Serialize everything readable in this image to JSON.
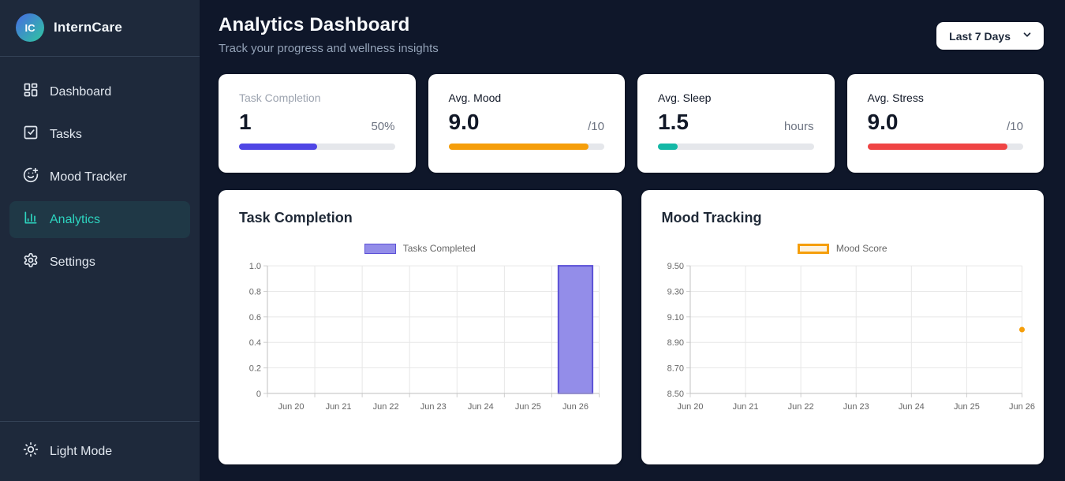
{
  "sidebar": {
    "logo_text": "IC",
    "app_name": "InternCare",
    "items": [
      {
        "label": "Dashboard",
        "icon": "dashboard-icon",
        "active": false
      },
      {
        "label": "Tasks",
        "icon": "tasks-icon",
        "active": false
      },
      {
        "label": "Mood Tracker",
        "icon": "mood-icon",
        "active": false
      },
      {
        "label": "Analytics",
        "icon": "analytics-icon",
        "active": true
      },
      {
        "label": "Settings",
        "icon": "settings-icon",
        "active": false
      }
    ],
    "footer": {
      "label": "Light Mode",
      "icon": "sun-icon"
    },
    "accent_color": "#2dd4bf"
  },
  "header": {
    "title": "Analytics Dashboard",
    "subtitle": "Track your progress and wellness insights",
    "range_select": {
      "value": "Last 7 Days"
    }
  },
  "stats": [
    {
      "label": "Task Completion",
      "value": "1",
      "suffix": "50%",
      "percent": 50,
      "color": "#4f46e5"
    },
    {
      "label": "Avg. Mood",
      "value": "9.0",
      "suffix": "/10",
      "percent": 90,
      "color": "#f59e0b"
    },
    {
      "label": "Avg. Sleep",
      "value": "1.5",
      "suffix": "hours",
      "percent": 12.5,
      "color": "#14b8a6"
    },
    {
      "label": "Avg. Stress",
      "value": "9.0",
      "suffix": "/10",
      "percent": 90,
      "color": "#ef4444"
    }
  ],
  "chart_data": [
    {
      "type": "bar",
      "title": "Task Completion",
      "legend": "Tasks Completed",
      "categories": [
        "Jun 20",
        "Jun 21",
        "Jun 22",
        "Jun 23",
        "Jun 24",
        "Jun 25",
        "Jun 26"
      ],
      "values": [
        0,
        0,
        0,
        0,
        0,
        0,
        1
      ],
      "ylim": [
        0,
        1.0
      ],
      "ytick_values": [
        0,
        0.2,
        0.4,
        0.6,
        0.8,
        1.0
      ],
      "ytick_labels": [
        "0",
        "0.2",
        "0.4",
        "0.6",
        "0.8",
        "1.0"
      ],
      "grid": true,
      "legend_position": "top",
      "bar_fill": "#938de9",
      "bar_border": "#5b50d6"
    },
    {
      "type": "line",
      "title": "Mood Tracking",
      "legend": "Mood Score",
      "categories": [
        "Jun 20",
        "Jun 21",
        "Jun 22",
        "Jun 23",
        "Jun 24",
        "Jun 25",
        "Jun 26"
      ],
      "values": [
        null,
        null,
        null,
        null,
        null,
        null,
        9.0
      ],
      "ylim": [
        8.5,
        9.5
      ],
      "ytick_values": [
        8.5,
        8.7,
        8.9,
        9.1,
        9.3,
        9.5
      ],
      "ytick_labels": [
        "8.50",
        "8.70",
        "8.90",
        "9.10",
        "9.30",
        "9.50"
      ],
      "grid": true,
      "legend_position": "top",
      "point_color": "#f59e0b",
      "legend_fill": "#fdf2df",
      "legend_border": "#f59e0b"
    }
  ]
}
